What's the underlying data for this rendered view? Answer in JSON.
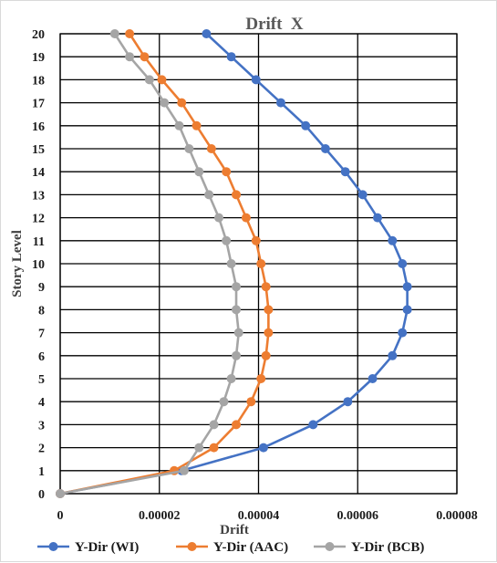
{
  "chart_data": {
    "type": "line",
    "title": "Drift  X",
    "xlabel": "Drift",
    "ylabel": "Story Level",
    "xlim": [
      0,
      8e-05
    ],
    "ylim": [
      0,
      20
    ],
    "x_ticks": [
      "0",
      "0.00002",
      "0.00004",
      "0.00006",
      "0.00008"
    ],
    "y_ticks": [
      "0",
      "1",
      "2",
      "3",
      "4",
      "5",
      "6",
      "7",
      "8",
      "9",
      "10",
      "11",
      "12",
      "13",
      "14",
      "15",
      "16",
      "17",
      "18",
      "19",
      "20"
    ],
    "grid": true,
    "legend_position": "bottom",
    "series": [
      {
        "name": "Y-Dir (WI)",
        "color": "#4472c4",
        "points": [
          [
            0,
            0
          ],
          [
            2.45e-05,
            1
          ],
          [
            4.1e-05,
            2
          ],
          [
            5.1e-05,
            3
          ],
          [
            5.8e-05,
            4
          ],
          [
            6.3e-05,
            5
          ],
          [
            6.7e-05,
            6
          ],
          [
            6.9e-05,
            7
          ],
          [
            7e-05,
            8
          ],
          [
            7e-05,
            9
          ],
          [
            6.9e-05,
            10
          ],
          [
            6.7e-05,
            11
          ],
          [
            6.4e-05,
            12
          ],
          [
            6.1e-05,
            13
          ],
          [
            5.75e-05,
            14
          ],
          [
            5.35e-05,
            15
          ],
          [
            4.95e-05,
            16
          ],
          [
            4.45e-05,
            17
          ],
          [
            3.95e-05,
            18
          ],
          [
            3.45e-05,
            19
          ],
          [
            2.95e-05,
            20
          ]
        ]
      },
      {
        "name": "Y-Dir (AAC)",
        "color": "#ed7d31",
        "points": [
          [
            0,
            0
          ],
          [
            2.3e-05,
            1
          ],
          [
            3.1e-05,
            2
          ],
          [
            3.55e-05,
            3
          ],
          [
            3.85e-05,
            4
          ],
          [
            4.05e-05,
            5
          ],
          [
            4.15e-05,
            6
          ],
          [
            4.2e-05,
            7
          ],
          [
            4.2e-05,
            8
          ],
          [
            4.15e-05,
            9
          ],
          [
            4.05e-05,
            10
          ],
          [
            3.95e-05,
            11
          ],
          [
            3.75e-05,
            12
          ],
          [
            3.55e-05,
            13
          ],
          [
            3.35e-05,
            14
          ],
          [
            3.05e-05,
            15
          ],
          [
            2.75e-05,
            16
          ],
          [
            2.45e-05,
            17
          ],
          [
            2.05e-05,
            18
          ],
          [
            1.7e-05,
            19
          ],
          [
            1.4e-05,
            20
          ]
        ]
      },
      {
        "name": "Y-Dir (BCB)",
        "color": "#a5a5a5",
        "points": [
          [
            0,
            0
          ],
          [
            2.5e-05,
            1
          ],
          [
            2.8e-05,
            2
          ],
          [
            3.1e-05,
            3
          ],
          [
            3.3e-05,
            4
          ],
          [
            3.45e-05,
            5
          ],
          [
            3.55e-05,
            6
          ],
          [
            3.6e-05,
            7
          ],
          [
            3.55e-05,
            8
          ],
          [
            3.55e-05,
            9
          ],
          [
            3.45e-05,
            10
          ],
          [
            3.35e-05,
            11
          ],
          [
            3.2e-05,
            12
          ],
          [
            3e-05,
            13
          ],
          [
            2.8e-05,
            14
          ],
          [
            2.6e-05,
            15
          ],
          [
            2.4e-05,
            16
          ],
          [
            2.1e-05,
            17
          ],
          [
            1.8e-05,
            18
          ],
          [
            1.4e-05,
            19
          ],
          [
            1.1e-05,
            20
          ]
        ]
      }
    ]
  }
}
